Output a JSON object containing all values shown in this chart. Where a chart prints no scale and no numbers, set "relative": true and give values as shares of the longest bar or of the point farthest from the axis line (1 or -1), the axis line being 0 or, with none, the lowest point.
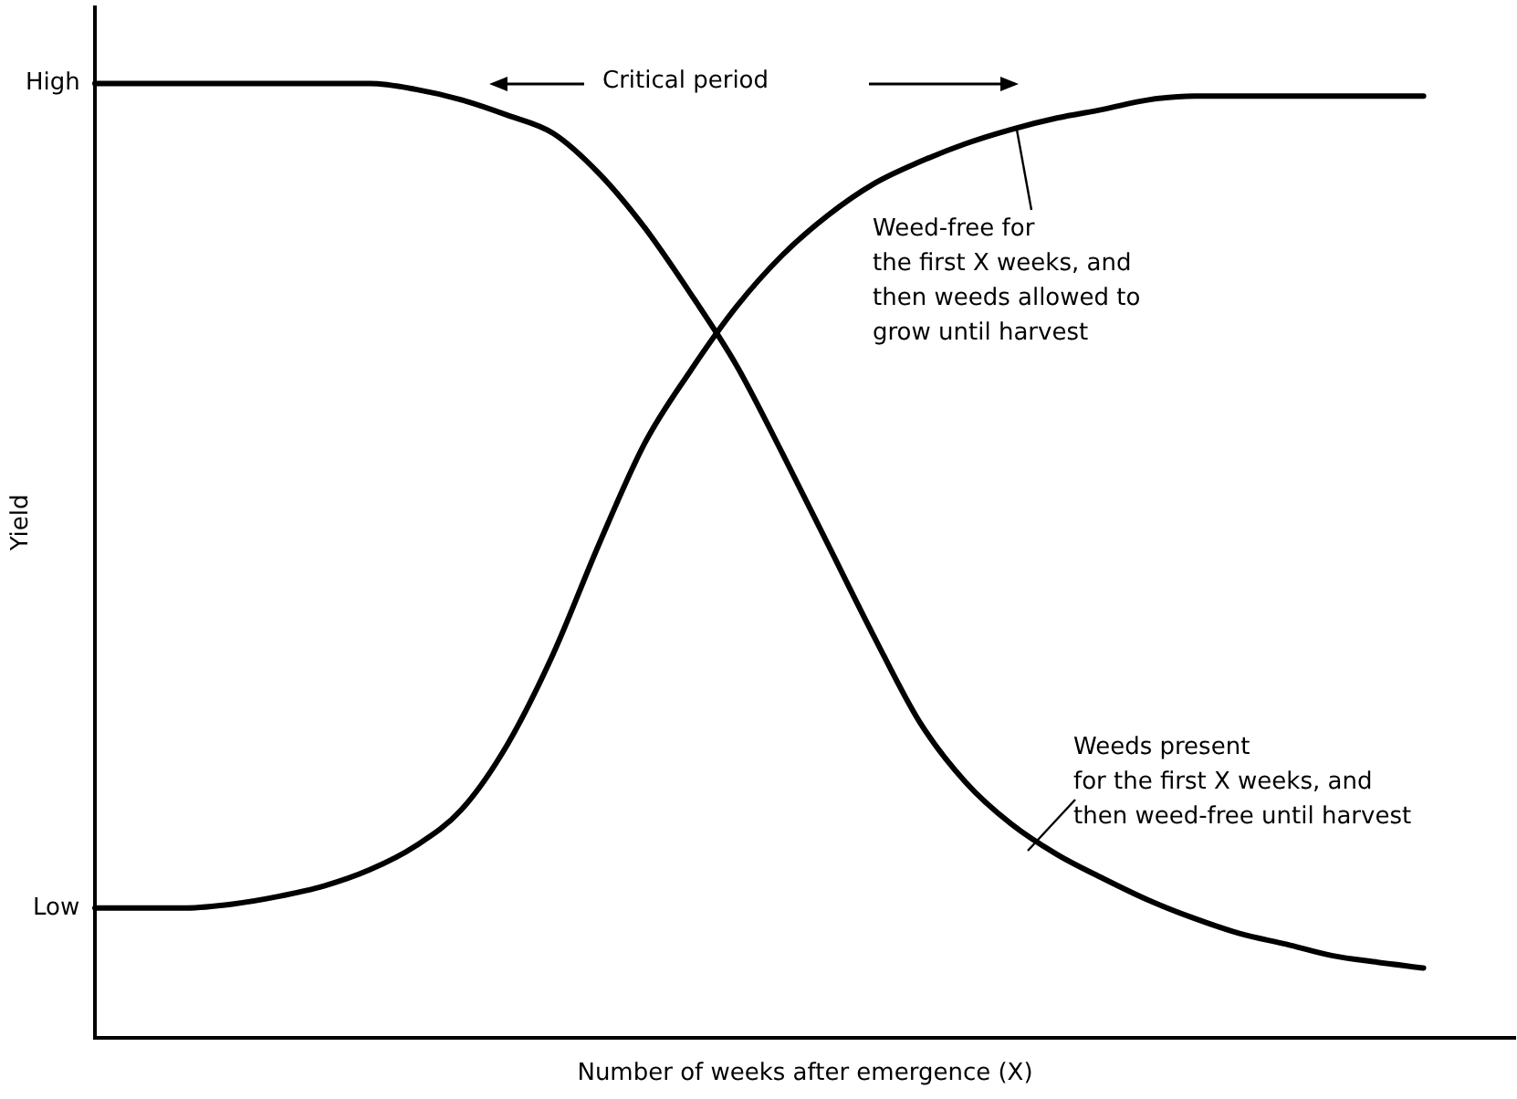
{
  "chart_data": {
    "type": "line",
    "xlabel": "Number of weeks after emergence (X)",
    "ylabel": "Yield",
    "categories": [
      null,
      null,
      null,
      null,
      null,
      null,
      null,
      null,
      null,
      null,
      null,
      null,
      null,
      null,
      null,
      null,
      null,
      null,
      null,
      null,
      null,
      null,
      null,
      null,
      null,
      null,
      null,
      null,
      null,
      null,
      null,
      null
    ],
    "relative": true,
    "series": [
      {
        "name": "Weeds present\nfor the first X weeks, and\nthen weed-free until harvest",
        "color": "#000000",
        "values": [
          1,
          1,
          1,
          1,
          1,
          1,
          1,
          0.994,
          0.983,
          0.967,
          0.948,
          0.906,
          0.849,
          0.78,
          0.705,
          0.613,
          0.517,
          0.421,
          0.331,
          0.268,
          0.224,
          0.192,
          0.167,
          0.144,
          0.125,
          0.109,
          0.098,
          0.086,
          0.079,
          0.073,
          null,
          null
        ]
      },
      {
        "name": "Weed-free for\nthe first X weeks, and\nthen weeds allowed to\ngrow until harvest",
        "color": "#000000",
        "values": [
          0.136,
          0.136,
          0.136,
          0.14,
          0.148,
          0.159,
          0.176,
          0.201,
          0.239,
          0.307,
          0.402,
          0.517,
          0.623,
          0.699,
          0.766,
          0.82,
          0.862,
          0.895,
          0.918,
          0.937,
          0.952,
          0.964,
          0.973,
          0.983,
          0.987,
          0.987,
          0.987,
          0.987,
          0.987,
          0.987,
          null,
          null
        ]
      }
    ],
    "annotations": [
      "Critical period",
      "High",
      "Low"
    ],
    "legend": false,
    "grid": false,
    "marker": "none",
    "line_style": "solid"
  }
}
